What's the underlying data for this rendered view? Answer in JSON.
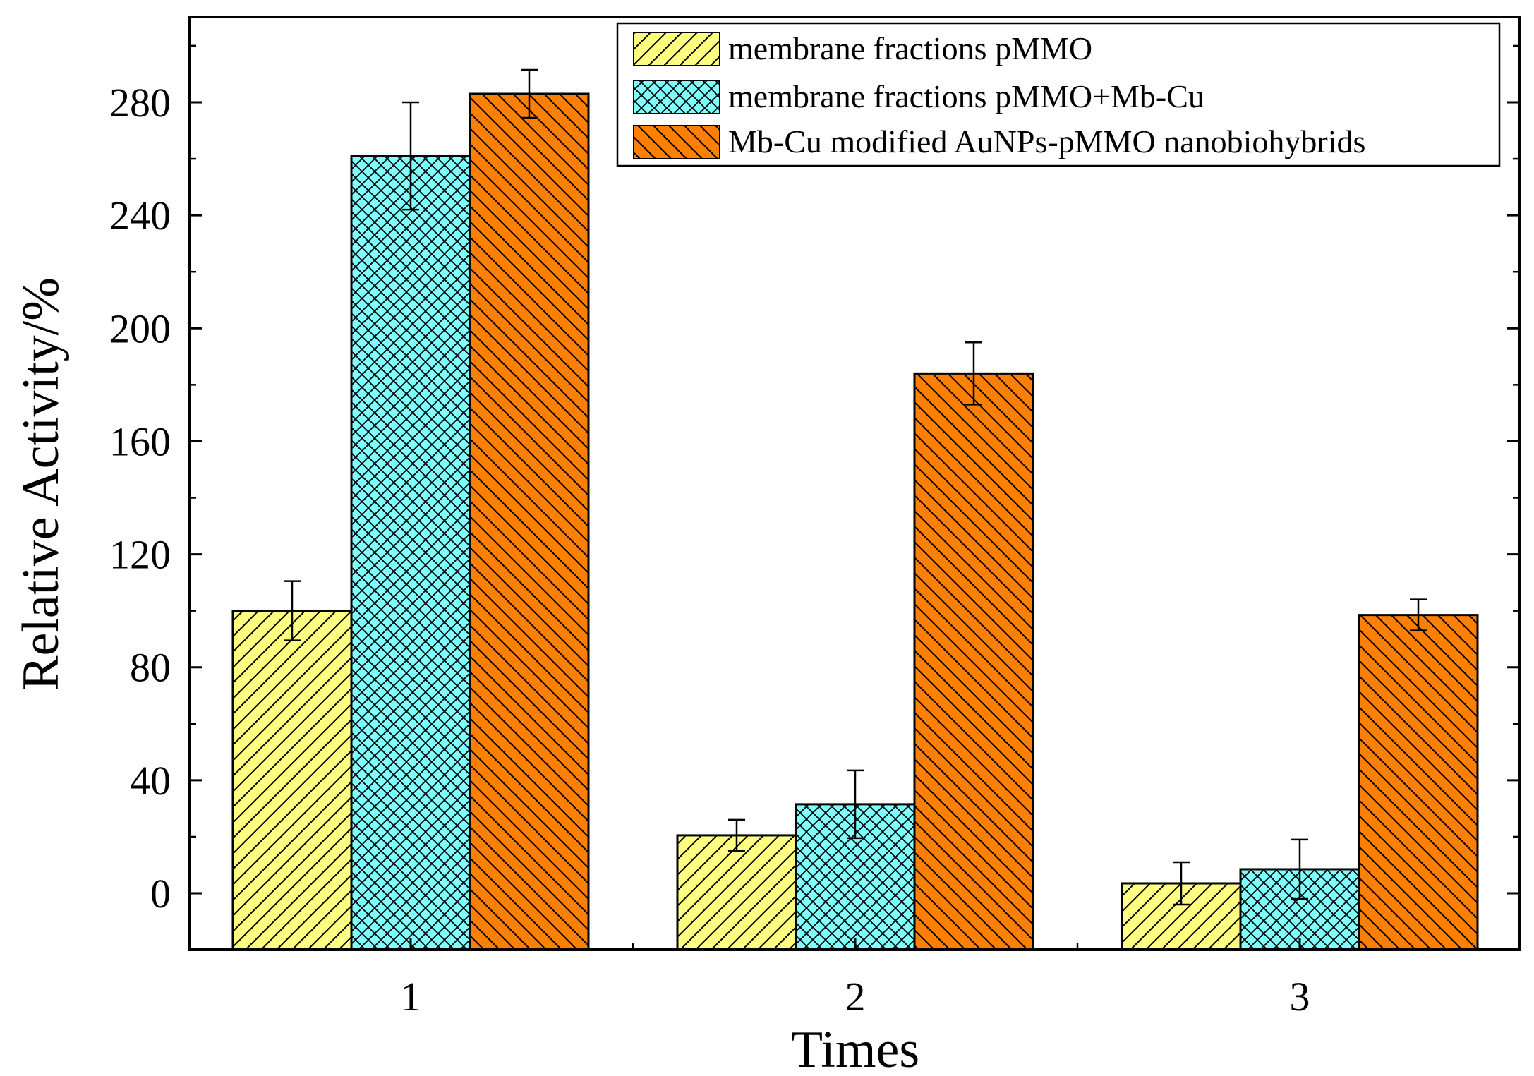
{
  "chart_data": {
    "type": "bar",
    "title": "",
    "xlabel": "Times",
    "ylabel": "Relative Activity/%",
    "categories": [
      "1",
      "2",
      "3"
    ],
    "ylim": [
      -20,
      300
    ],
    "yticks": [
      0,
      40,
      80,
      120,
      160,
      200,
      240,
      280
    ],
    "grid": false,
    "legend_position": "top-right",
    "series": [
      {
        "name": "membrane fractions pMMO",
        "color": "#FFFF80",
        "pattern": "diagonal-up",
        "values": [
          100,
          20.5,
          3.5
        ],
        "errors": [
          10.5,
          5.5,
          7.5
        ]
      },
      {
        "name": "membrane fractions pMMO+Mb-Cu",
        "color": "#80FFFF",
        "pattern": "crosshatch",
        "values": [
          261,
          31.5,
          8.5
        ],
        "errors": [
          19,
          12,
          10.5
        ]
      },
      {
        "name": "Mb-Cu modified AuNPs-pMMO nanobiohybrids",
        "color": "#FF8000",
        "pattern": "diagonal-down",
        "values": [
          283,
          184,
          98.5
        ],
        "errors": [
          8.5,
          11,
          5.5
        ]
      }
    ]
  }
}
